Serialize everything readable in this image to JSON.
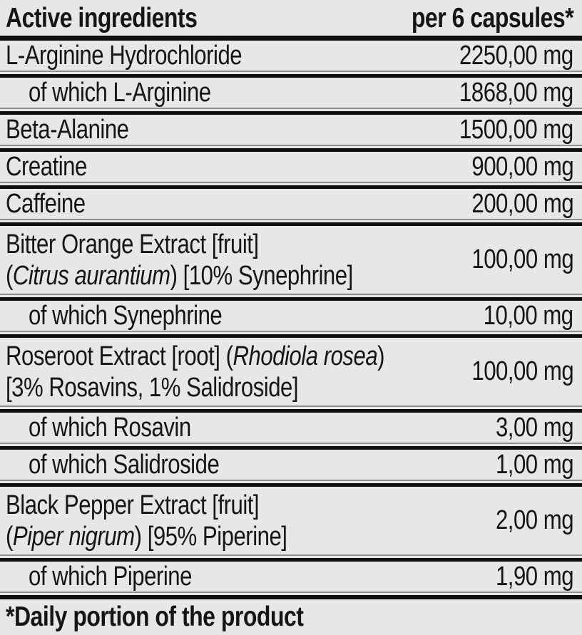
{
  "colors": {
    "background": "#e7e7e7",
    "text": "#151515",
    "rule_thick": "#0e0e0e",
    "rule_thin": "#8f8f8f"
  },
  "header": {
    "ingredients_label": "Active ingredients",
    "amount_label": "per 6 capsules*"
  },
  "rows": [
    {
      "indent": false,
      "amount": "2250,00 mg",
      "lines": [
        [
          {
            "t": "L-Arginine Hydrochloride"
          }
        ]
      ]
    },
    {
      "indent": true,
      "amount": "1868,00 mg",
      "lines": [
        [
          {
            "t": "of which L-Arginine"
          }
        ]
      ]
    },
    {
      "indent": false,
      "amount": "1500,00 mg",
      "lines": [
        [
          {
            "t": "Beta-Alanine"
          }
        ]
      ]
    },
    {
      "indent": false,
      "amount": "900,00 mg",
      "lines": [
        [
          {
            "t": "Creatine"
          }
        ]
      ]
    },
    {
      "indent": false,
      "amount": "200,00 mg",
      "lines": [
        [
          {
            "t": "Caffeine"
          }
        ]
      ]
    },
    {
      "indent": false,
      "amount": "100,00 mg",
      "lines": [
        [
          {
            "t": "Bitter Orange Extract [fruit]"
          }
        ],
        [
          {
            "t": "("
          },
          {
            "t": "Citrus aurantium",
            "italic": true
          },
          {
            "t": ") [10% Synephrine]"
          }
        ]
      ]
    },
    {
      "indent": true,
      "amount": "10,00 mg",
      "lines": [
        [
          {
            "t": "of which Synephrine"
          }
        ]
      ]
    },
    {
      "indent": false,
      "amount": "100,00 mg",
      "lines": [
        [
          {
            "t": "Roseroot Extract [root] ("
          },
          {
            "t": "Rhodiola rosea",
            "italic": true
          },
          {
            "t": ")"
          }
        ],
        [
          {
            "t": "[3% Rosavins, 1% Salidroside]"
          }
        ]
      ]
    },
    {
      "indent": true,
      "amount": "3,00 mg",
      "lines": [
        [
          {
            "t": "of which Rosavin"
          }
        ]
      ]
    },
    {
      "indent": true,
      "amount": "1,00 mg",
      "lines": [
        [
          {
            "t": "of which Salidroside"
          }
        ]
      ]
    },
    {
      "indent": false,
      "amount": "2,00 mg",
      "lines": [
        [
          {
            "t": "Black Pepper Extract [fruit]"
          }
        ],
        [
          {
            "t": "("
          },
          {
            "t": "Piper nigrum",
            "italic": true
          },
          {
            "t": ") [95% Piperine]"
          }
        ]
      ]
    },
    {
      "indent": true,
      "amount": "1,90 mg",
      "lines": [
        [
          {
            "t": "of which Piperine"
          }
        ]
      ]
    }
  ],
  "footer": {
    "note": "*Daily portion of the product"
  }
}
